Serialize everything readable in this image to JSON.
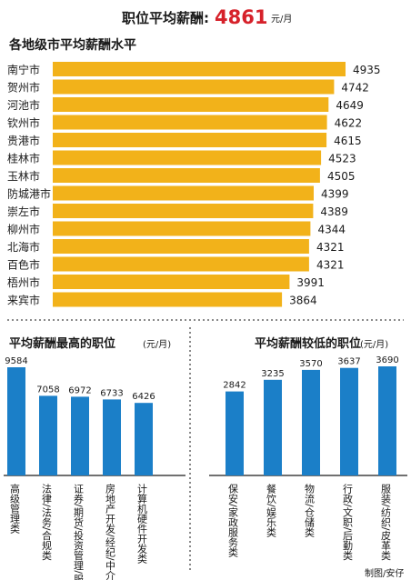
{
  "header": {
    "title_prefix": "职位平均薪酬:",
    "title_value": "4861",
    "title_unit": "元/月"
  },
  "credit": "制图/安仔",
  "colors": {
    "gold": "#f2b21a",
    "blue": "#1b7fc8",
    "red": "#d6212a",
    "dark": "#1a1a1a",
    "dots": "#8a8a8a"
  },
  "chart_data": [
    {
      "type": "bar",
      "orientation": "horizontal",
      "title": "各地级市平均薪酬水平",
      "categories": [
        "南宁市",
        "贺州市",
        "河池市",
        "钦州市",
        "贵港市",
        "桂林市",
        "玉林市",
        "防城港市",
        "崇左市",
        "柳州市",
        "北海市",
        "百色市",
        "梧州市",
        "来宾市"
      ],
      "values": [
        4935,
        4742,
        4649,
        4622,
        4615,
        4523,
        4505,
        4399,
        4389,
        4344,
        4321,
        4321,
        3991,
        3864
      ],
      "xlim": [
        0,
        5200
      ],
      "grid": false
    },
    {
      "type": "bar",
      "orientation": "vertical",
      "title": "平均薪酬最高的职位",
      "unit": "(元/月)",
      "categories": [
        "高级管理类",
        "法律/法务/合规类",
        "证券/期货/投资管理/服务类",
        "房地产开发/经纪/中介类",
        "计算机硬件开发类"
      ],
      "values": [
        9584,
        7058,
        6972,
        6733,
        6426
      ],
      "ylim": [
        0,
        10500
      ],
      "grid": false
    },
    {
      "type": "bar",
      "orientation": "vertical",
      "title": "平均薪酬较低的职位",
      "unit": "(元/月)",
      "categories": [
        "保安/家政服务类",
        "餐饮/娱乐类",
        "物流/仓储类",
        "行政/文职/后勤类",
        "服装/纺织/皮革类"
      ],
      "values": [
        2842,
        3235,
        3570,
        3637,
        3690
      ],
      "ylim": [
        0,
        4100
      ],
      "grid": false
    }
  ]
}
